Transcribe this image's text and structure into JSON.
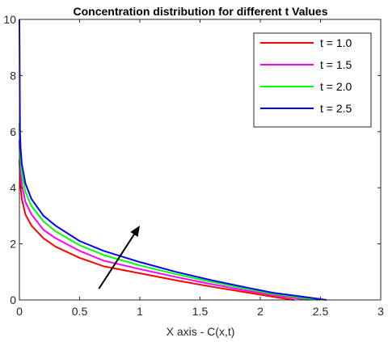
{
  "chart_data": {
    "type": "line",
    "title": "Concentration distribution for different t Values",
    "xlabel": "X axis - C(x,t)",
    "ylabel": "",
    "xlim": [
      0,
      3
    ],
    "ylim": [
      0,
      10
    ],
    "xticks": [
      "0",
      "0.5",
      "1",
      "1.5",
      "2",
      "2.5",
      "3"
    ],
    "yticks": [
      "0",
      "2",
      "4",
      "6",
      "8",
      "10"
    ],
    "grid": false,
    "legend_position": "top-right",
    "series": [
      {
        "name": "t = 1.0",
        "color": "#ff0000",
        "x": [
          0,
          0.005,
          0.01,
          0.02,
          0.05,
          0.1,
          0.2,
          0.3,
          0.5,
          0.7,
          1.0,
          1.3,
          1.6,
          1.9,
          2.1,
          2.28
        ],
        "y": [
          5.0,
          4.4,
          4.0,
          3.6,
          3.05,
          2.65,
          2.2,
          1.9,
          1.5,
          1.2,
          0.95,
          0.7,
          0.47,
          0.26,
          0.12,
          0.0
        ]
      },
      {
        "name": "t = 1.5",
        "color": "#ff00ff",
        "x": [
          0,
          0.005,
          0.01,
          0.02,
          0.05,
          0.1,
          0.2,
          0.3,
          0.5,
          0.7,
          1.0,
          1.3,
          1.6,
          1.9,
          2.1,
          2.4
        ],
        "y": [
          5.7,
          5.0,
          4.55,
          4.1,
          3.5,
          3.05,
          2.5,
          2.2,
          1.75,
          1.4,
          1.1,
          0.82,
          0.56,
          0.32,
          0.18,
          0.0
        ]
      },
      {
        "name": "t = 2.0",
        "color": "#00ff00",
        "x": [
          0,
          0.005,
          0.01,
          0.02,
          0.05,
          0.1,
          0.2,
          0.3,
          0.5,
          0.7,
          1.0,
          1.3,
          1.6,
          1.9,
          2.1,
          2.48
        ],
        "y": [
          6.3,
          5.5,
          5.0,
          4.5,
          3.85,
          3.35,
          2.8,
          2.45,
          1.95,
          1.6,
          1.23,
          0.92,
          0.64,
          0.38,
          0.22,
          0.0
        ]
      },
      {
        "name": "t = 2.5",
        "color": "#0000ff",
        "x": [
          0,
          0.005,
          0.01,
          0.02,
          0.05,
          0.1,
          0.2,
          0.3,
          0.5,
          0.7,
          1.0,
          1.3,
          1.6,
          1.9,
          2.1,
          2.55
        ],
        "y": [
          10.0,
          6.0,
          5.4,
          4.85,
          4.15,
          3.6,
          3.0,
          2.65,
          2.1,
          1.75,
          1.35,
          1.0,
          0.7,
          0.43,
          0.26,
          0.0
        ]
      }
    ],
    "annotations": [
      {
        "type": "arrow",
        "from": [
          0.66,
          0.4
        ],
        "to": [
          1.0,
          2.65
        ],
        "color": "#000000"
      }
    ]
  }
}
